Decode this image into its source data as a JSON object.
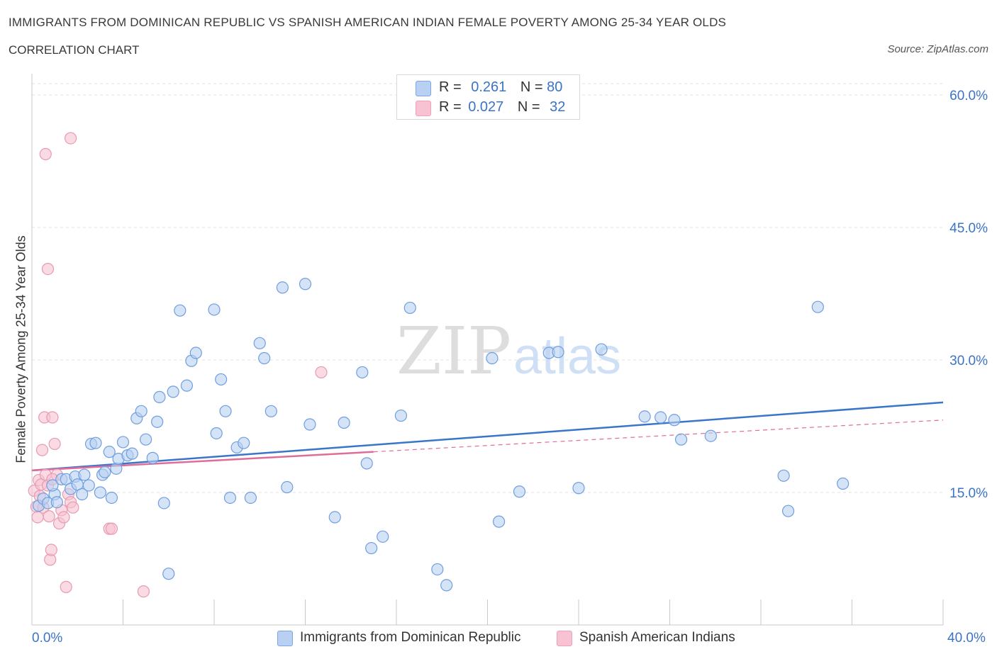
{
  "header": {
    "title": "IMMIGRANTS FROM DOMINICAN REPUBLIC VS SPANISH AMERICAN INDIAN FEMALE POVERTY AMONG 25-34 YEAR OLDS",
    "subtitle": "CORRELATION CHART",
    "source": "Source: ZipAtlas.com"
  },
  "watermark": {
    "zip": "ZIP",
    "atlas": "atlas"
  },
  "legend": {
    "r_label": "R =",
    "n_label": "N =",
    "rows": [
      {
        "r": "0.261",
        "n": "80",
        "color": "#7aa7e6"
      },
      {
        "r": "0.027",
        "n": "32",
        "color": "#f0a0ba"
      }
    ]
  },
  "bottom_legend": [
    {
      "label": "Immigrants from Dominican Republic",
      "color": "#7aa7e6"
    },
    {
      "label": "Spanish American Indians",
      "color": "#f0a0ba"
    }
  ],
  "colors": {
    "blue_fill": "#b9d0f2",
    "blue_stroke": "#6f9ee0",
    "blue_line": "#3a75cc",
    "pink_fill": "#f7c3d2",
    "pink_stroke": "#e79ab2",
    "pink_line": "#e06d98",
    "axis_text": "#3b73c8",
    "grid": "#e2e2e2"
  },
  "chart_data": {
    "type": "scatter",
    "title": "IMMIGRANTS FROM DOMINICAN REPUBLIC VS SPANISH AMERICAN INDIAN FEMALE POVERTY AMONG 25-34 YEAR OLDS",
    "xlabel": "",
    "ylabel": "Female Poverty Among 25-34 Year Olds",
    "xlim": [
      0,
      40
    ],
    "ylim": [
      0,
      60
    ],
    "x_tick_labels": [
      "0.0%",
      "40.0%"
    ],
    "y_ticks": [
      15,
      30,
      45,
      60
    ],
    "y_tick_labels": [
      "15.0%",
      "30.0%",
      "45.0%",
      "60.0%"
    ],
    "grid": "horizontal dashed",
    "legend_position": "top-center",
    "series": [
      {
        "name": "Immigrants from Dominican Republic",
        "points": [
          [
            0.3,
            13.5
          ],
          [
            0.5,
            14.3
          ],
          [
            0.7,
            13.8
          ],
          [
            1.0,
            14.8
          ],
          [
            1.1,
            13.9
          ],
          [
            0.9,
            15.8
          ],
          [
            1.3,
            16.5
          ],
          [
            1.5,
            16.5
          ],
          [
            1.7,
            15.4
          ],
          [
            1.9,
            16.8
          ],
          [
            2.0,
            15.9
          ],
          [
            2.2,
            14.8
          ],
          [
            2.3,
            17.0
          ],
          [
            2.5,
            15.8
          ],
          [
            2.6,
            20.5
          ],
          [
            2.8,
            20.6
          ],
          [
            3.0,
            15.0
          ],
          [
            3.1,
            17.0
          ],
          [
            3.2,
            17.3
          ],
          [
            3.4,
            19.6
          ],
          [
            3.5,
            14.4
          ],
          [
            3.7,
            17.7
          ],
          [
            3.8,
            18.8
          ],
          [
            4.0,
            20.7
          ],
          [
            4.2,
            19.2
          ],
          [
            4.4,
            19.4
          ],
          [
            4.6,
            23.4
          ],
          [
            4.8,
            24.2
          ],
          [
            5.0,
            21.0
          ],
          [
            5.3,
            18.9
          ],
          [
            5.5,
            23.0
          ],
          [
            5.6,
            25.8
          ],
          [
            5.8,
            13.8
          ],
          [
            6.0,
            5.8
          ],
          [
            6.2,
            26.4
          ],
          [
            6.5,
            35.6
          ],
          [
            6.8,
            27.1
          ],
          [
            7.0,
            29.9
          ],
          [
            7.2,
            30.8
          ],
          [
            8.0,
            35.7
          ],
          [
            8.1,
            21.7
          ],
          [
            8.3,
            27.8
          ],
          [
            8.5,
            24.2
          ],
          [
            8.7,
            14.4
          ],
          [
            9.0,
            20.1
          ],
          [
            9.3,
            20.6
          ],
          [
            9.6,
            14.4
          ],
          [
            10.0,
            31.9
          ],
          [
            10.2,
            30.2
          ],
          [
            10.5,
            24.2
          ],
          [
            11.0,
            38.2
          ],
          [
            11.2,
            15.6
          ],
          [
            12.0,
            38.6
          ],
          [
            12.2,
            22.7
          ],
          [
            13.3,
            12.2
          ],
          [
            13.7,
            22.9
          ],
          [
            14.5,
            28.6
          ],
          [
            14.7,
            18.3
          ],
          [
            14.9,
            8.7
          ],
          [
            15.4,
            10.0
          ],
          [
            16.2,
            23.7
          ],
          [
            16.6,
            35.9
          ],
          [
            17.8,
            6.3
          ],
          [
            18.2,
            4.5
          ],
          [
            20.2,
            30.2
          ],
          [
            20.5,
            11.7
          ],
          [
            21.4,
            15.1
          ],
          [
            22.7,
            30.8
          ],
          [
            23.1,
            30.9
          ],
          [
            24.0,
            15.5
          ],
          [
            25.0,
            31.2
          ],
          [
            26.9,
            23.6
          ],
          [
            27.6,
            23.5
          ],
          [
            28.2,
            23.2
          ],
          [
            28.5,
            21.0
          ],
          [
            29.8,
            21.4
          ],
          [
            33.0,
            16.9
          ],
          [
            33.2,
            12.9
          ],
          [
            34.5,
            36.0
          ],
          [
            35.6,
            16.0
          ]
        ],
        "trend": {
          "x": [
            0,
            40
          ],
          "y": [
            17.5,
            25.2
          ]
        }
      },
      {
        "name": "Spanish American Indians",
        "points": [
          [
            0.1,
            15.2
          ],
          [
            0.2,
            13.4
          ],
          [
            0.25,
            12.2
          ],
          [
            0.3,
            16.4
          ],
          [
            0.35,
            14.6
          ],
          [
            0.4,
            15.9
          ],
          [
            0.45,
            19.8
          ],
          [
            0.5,
            13.3
          ],
          [
            0.55,
            23.5
          ],
          [
            0.6,
            17.0
          ],
          [
            0.7,
            15.8
          ],
          [
            0.75,
            12.3
          ],
          [
            0.8,
            7.4
          ],
          [
            0.85,
            8.5
          ],
          [
            0.9,
            23.5
          ],
          [
            1.0,
            20.5
          ],
          [
            1.1,
            17.0
          ],
          [
            1.2,
            11.5
          ],
          [
            1.3,
            13.0
          ],
          [
            1.4,
            12.2
          ],
          [
            1.5,
            4.3
          ],
          [
            1.6,
            14.8
          ],
          [
            1.7,
            13.9
          ],
          [
            1.8,
            13.3
          ],
          [
            0.6,
            53.3
          ],
          [
            1.7,
            55.1
          ],
          [
            0.7,
            40.3
          ],
          [
            3.4,
            10.9
          ],
          [
            3.5,
            10.9
          ],
          [
            4.9,
            3.8
          ],
          [
            12.7,
            28.6
          ],
          [
            0.9,
            16.5
          ]
        ],
        "trend": {
          "x": [
            0,
            15
          ],
          "y": [
            17.5,
            19.6
          ]
        },
        "trend_extension": {
          "x": [
            15,
            40
          ],
          "y": [
            19.6,
            23.2
          ]
        }
      }
    ]
  }
}
